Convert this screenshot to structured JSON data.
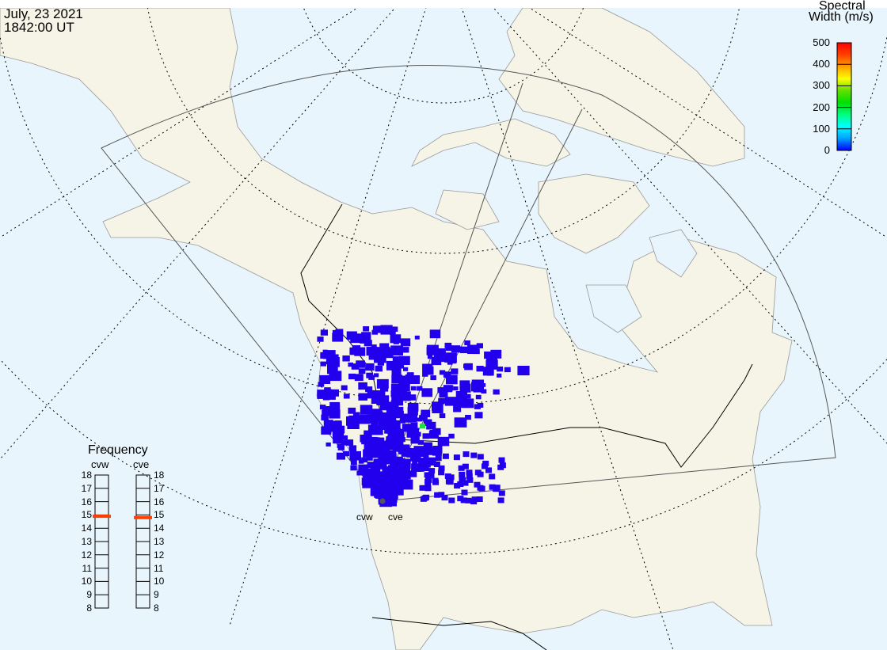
{
  "header": {
    "date": "July, 23 2021",
    "time": "1842:00 UT"
  },
  "colorbar": {
    "title_line1": "Spectral",
    "title_line2": "Width (m/s)",
    "ticks": [
      "500",
      "400",
      "300",
      "200",
      "100",
      "0"
    ],
    "range": [
      0,
      500
    ],
    "colors": [
      "#0000ff",
      "#00a0ff",
      "#00ffff",
      "#00ff80",
      "#00e000",
      "#60e000",
      "#ffff00",
      "#ffa000",
      "#ff4000",
      "#ff0000"
    ]
  },
  "frequency": {
    "title": "Frequency",
    "radars": [
      {
        "name": "cvw",
        "value_mhz": 14.9
      },
      {
        "name": "cve",
        "value_mhz": 14.8
      }
    ],
    "ticks": [
      "18",
      "17",
      "16",
      "15",
      "14",
      "13",
      "12",
      "11",
      "10",
      "9",
      "8"
    ],
    "range": [
      8,
      18
    ],
    "marker_color": "#ff4000"
  },
  "map": {
    "ocean_color": "#e8f5fd",
    "land_color": "#f6f4e6",
    "scatter_color": "#2200ee",
    "site_labels": [
      "cvw",
      "cve"
    ]
  }
}
